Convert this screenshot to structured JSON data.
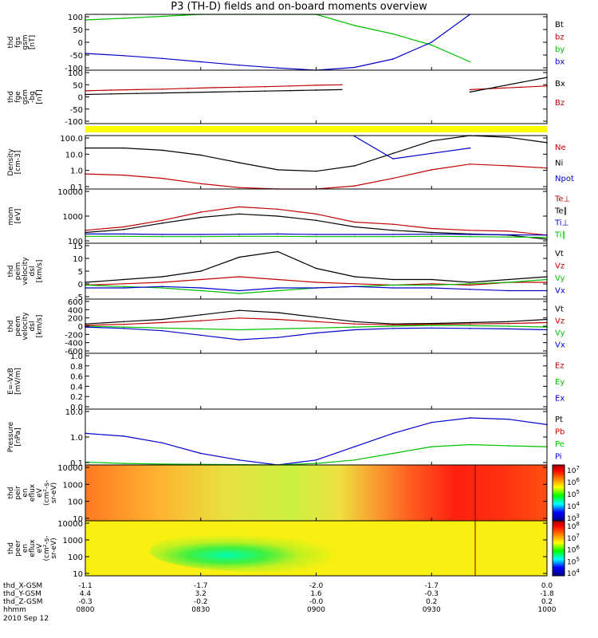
{
  "title": "P3 (TH-D) fields and on-board moments overview",
  "date_label": "2010 Sep 12",
  "colorbar_1": {
    "ticks": [
      "10^7",
      "10^6",
      "10^5",
      "10^4",
      "10^3"
    ]
  },
  "colorbar_2": {
    "ticks": [
      "10^8",
      "10^7",
      "10^6",
      "10^5",
      "10^4"
    ]
  },
  "chart_data": [
    {
      "type": "line",
      "ylabel": [
        "thd",
        "fgs",
        "gsm",
        "[nT]"
      ],
      "yticks": [
        "100",
        "50",
        "0",
        "-50",
        "-100"
      ],
      "ylim": [
        -100,
        100
      ],
      "legend": [
        {
          "label": "Bt",
          "color": "#000000"
        },
        {
          "label": "bz",
          "color": "#c00000"
        },
        {
          "label": "by",
          "color": "#00c000"
        },
        {
          "label": "bx",
          "color": "#0000cc"
        }
      ],
      "x": [
        0,
        10,
        20,
        30,
        40,
        50,
        60,
        70,
        80,
        90,
        100,
        110,
        120
      ],
      "series": [
        {
          "name": "by",
          "color": "#00c000",
          "values": [
            80,
            86,
            93,
            100,
            100,
            100,
            100,
            60,
            30,
            -10,
            -70,
            null,
            null
          ]
        },
        {
          "name": "bx",
          "color": "#0000cc",
          "values": [
            -40,
            -48,
            -58,
            -70,
            -82,
            -92,
            -100,
            -90,
            -60,
            0,
            100,
            null,
            null
          ]
        }
      ]
    },
    {
      "type": "line",
      "ylabel": [
        "thd",
        "fge",
        "gsm",
        "-bg",
        "[nT]"
      ],
      "yticks": [
        "100",
        "50",
        "0",
        "-50",
        "-100"
      ],
      "ylim": [
        -120,
        100
      ],
      "legend": [
        {
          "label": "Bx",
          "color": "#000000"
        },
        {
          "label": "Bz",
          "color": "#c00000"
        }
      ],
      "x": [
        0,
        10,
        20,
        30,
        40,
        50,
        60,
        70,
        80,
        90,
        100,
        110,
        120,
        130,
        140,
        150,
        160,
        170,
        180
      ],
      "series": [
        {
          "name": "Bz",
          "color": "#c00000",
          "values": [
            15,
            18,
            20,
            22,
            25,
            28,
            30,
            32,
            35,
            38,
            40,
            null,
            null,
            null,
            null,
            20,
            25,
            30,
            35
          ]
        },
        {
          "name": "Bx",
          "color": "#000000",
          "values": [
            0,
            2,
            4,
            6,
            8,
            10,
            12,
            14,
            16,
            18,
            20,
            null,
            null,
            null,
            null,
            10,
            30,
            50,
            70
          ]
        }
      ]
    },
    {
      "type": "line",
      "ylabel": [
        "Density",
        "[cm-3]"
      ],
      "yticks": [
        "100.0",
        "10.0",
        "1.0",
        "0.1"
      ],
      "scale": "log",
      "ylim": [
        0.1,
        100
      ],
      "legend": [
        {
          "label": "Ne",
          "color": "#c00000"
        },
        {
          "label": "Ni",
          "color": "#000000"
        },
        {
          "label": "Npot",
          "color": "#0000cc"
        }
      ],
      "x": [
        0,
        10,
        20,
        30,
        40,
        50,
        60,
        70,
        80,
        90,
        100,
        110,
        120
      ],
      "series": [
        {
          "name": "Ni",
          "color": "#000000",
          "values": [
            20,
            20,
            15,
            8,
            3,
            1.2,
            1,
            2,
            10,
            50,
            100,
            80,
            40
          ]
        },
        {
          "name": "Ne",
          "color": "#c00000",
          "values": [
            0.7,
            0.6,
            0.4,
            0.2,
            0.12,
            0.1,
            0.1,
            0.15,
            0.4,
            1.2,
            2.5,
            2.0,
            1.5
          ]
        },
        {
          "name": "Npot",
          "color": "#0000cc",
          "values": [
            null,
            null,
            null,
            null,
            null,
            null,
            null,
            90,
            5,
            10,
            20,
            null,
            null
          ]
        }
      ]
    },
    {
      "type": "line",
      "ylabel": [
        "mom",
        "[eV]"
      ],
      "yticks": [
        "10000",
        "1000",
        "100"
      ],
      "scale": "log",
      "ylim": [
        100,
        10000
      ],
      "legend": [
        {
          "label": "Te⊥",
          "color": "#c00000"
        },
        {
          "label": "Te∥",
          "color": "#000000"
        },
        {
          "label": "Ti⊥",
          "color": "#0000cc"
        },
        {
          "label": "Ti∥",
          "color": "#00c000"
        }
      ],
      "x": [
        0,
        10,
        20,
        30,
        40,
        50,
        60,
        70,
        80,
        90,
        100,
        110,
        120
      ],
      "series": [
        {
          "name": "Te⊥",
          "color": "#c00000",
          "values": [
            300,
            400,
            700,
            1400,
            2200,
            1800,
            1200,
            600,
            500,
            350,
            300,
            280,
            200
          ]
        },
        {
          "name": "Te∥",
          "color": "#000000",
          "values": [
            250,
            320,
            550,
            900,
            1200,
            1000,
            700,
            400,
            300,
            250,
            220,
            200,
            140
          ]
        },
        {
          "name": "Ti⊥",
          "color": "#0000cc",
          "values": [
            220,
            220,
            210,
            210,
            215,
            220,
            210,
            210,
            210,
            215,
            210,
            205,
            200
          ]
        },
        {
          "name": "Ti∥",
          "color": "#00c000",
          "values": [
            180,
            180,
            175,
            175,
            180,
            180,
            175,
            175,
            175,
            180,
            175,
            170,
            165
          ]
        }
      ]
    },
    {
      "type": "line",
      "ylabel": [
        "thd",
        "peim",
        "velocity",
        "dsl",
        "[km/s]"
      ],
      "yticks": [
        "15",
        "10",
        "5",
        "0",
        "-5"
      ],
      "ylim": [
        -5,
        15
      ],
      "legend": [
        {
          "label": "Vt",
          "color": "#000000"
        },
        {
          "label": "Vz",
          "color": "#c00000"
        },
        {
          "label": "Vy",
          "color": "#00c000"
        },
        {
          "label": "Vx",
          "color": "#0000cc"
        }
      ],
      "x": [
        0,
        10,
        20,
        30,
        40,
        50,
        60,
        70,
        80,
        90,
        100,
        110,
        120
      ],
      "series": [
        {
          "name": "Vt",
          "color": "#000000",
          "values": [
            1,
            2,
            3,
            5,
            10,
            12,
            6,
            3,
            2,
            2,
            1,
            2,
            3
          ]
        },
        {
          "name": "Vz",
          "color": "#c00000",
          "values": [
            0,
            0.5,
            1,
            2,
            3,
            2,
            1,
            0.5,
            0,
            0.5,
            0,
            1,
            1
          ]
        },
        {
          "name": "Vy",
          "color": "#00c000",
          "values": [
            0,
            -0.5,
            -1,
            -2,
            -3,
            -2,
            -1,
            -0.5,
            0,
            0,
            0.5,
            1,
            2
          ]
        },
        {
          "name": "Vx",
          "color": "#0000cc",
          "values": [
            -1,
            -1,
            -0.5,
            -1,
            -2,
            -1,
            -1,
            -0.5,
            -1,
            -1,
            -1.5,
            -2,
            -2
          ]
        }
      ]
    },
    {
      "type": "line",
      "ylabel": [
        "thd",
        "peem",
        "velocity",
        "dsl",
        "[km/s]"
      ],
      "yticks": [
        "600",
        "400",
        "200",
        "0",
        "-200",
        "-400",
        "-600"
      ],
      "ylim": [
        -600,
        600
      ],
      "legend": [
        {
          "label": "Vt",
          "color": "#000000"
        },
        {
          "label": "Vz",
          "color": "#c00000"
        },
        {
          "label": "Vy",
          "color": "#00c000"
        },
        {
          "label": "Vx",
          "color": "#0000cc"
        }
      ],
      "x": [
        0,
        10,
        20,
        30,
        40,
        50,
        60,
        70,
        80,
        90,
        100,
        110,
        120
      ],
      "series": [
        {
          "name": "Vt",
          "color": "#000000",
          "values": [
            50,
            100,
            150,
            250,
            350,
            300,
            200,
            100,
            50,
            60,
            80,
            100,
            150
          ]
        },
        {
          "name": "Vz",
          "color": "#c00000",
          "values": [
            20,
            40,
            80,
            120,
            180,
            150,
            100,
            50,
            30,
            40,
            50,
            60,
            80
          ]
        },
        {
          "name": "Vy",
          "color": "#00c000",
          "values": [
            0,
            -20,
            -40,
            -60,
            -80,
            -60,
            -40,
            -20,
            0,
            20,
            10,
            0,
            -20
          ]
        },
        {
          "name": "Vx",
          "color": "#0000cc",
          "values": [
            -20,
            -50,
            -100,
            -200,
            -300,
            -250,
            -150,
            -80,
            -50,
            -40,
            -50,
            -60,
            -80
          ]
        }
      ]
    },
    {
      "type": "line",
      "ylabel": [
        "E=-VxB",
        "[mV/m]"
      ],
      "yticks": [
        "1.0",
        "0.8",
        "0.6",
        "0.4",
        "0.2",
        "0.0"
      ],
      "ylim": [
        0,
        1
      ],
      "legend": [
        {
          "label": "Ez",
          "color": "#c00000"
        },
        {
          "label": "Ey",
          "color": "#00c000"
        },
        {
          "label": "Ex",
          "color": "#0000cc"
        }
      ],
      "series": []
    },
    {
      "type": "line",
      "ylabel": [
        "Pressure",
        "[nPa]"
      ],
      "yticks": [
        "10.0",
        "1.0",
        "0.1"
      ],
      "scale": "log",
      "ylim": [
        0.03,
        10
      ],
      "legend": [
        {
          "label": "Pt",
          "color": "#000000"
        },
        {
          "label": "Pb",
          "color": "#c00000"
        },
        {
          "label": "Pe",
          "color": "#00c000"
        },
        {
          "label": "Pi",
          "color": "#0000cc"
        }
      ],
      "x": [
        0,
        10,
        20,
        30,
        40,
        50,
        60,
        70,
        80,
        90,
        100,
        110,
        120
      ],
      "series": [
        {
          "name": "Pi",
          "color": "#0000cc",
          "values": [
            0.8,
            0.6,
            0.3,
            0.1,
            0.05,
            0.03,
            0.05,
            0.2,
            0.8,
            2.5,
            4,
            3.5,
            2
          ]
        },
        {
          "name": "Pe",
          "color": "#00c000",
          "values": [
            0.04,
            0.035,
            0.033,
            0.032,
            0.031,
            0.03,
            0.035,
            0.05,
            0.1,
            0.2,
            0.25,
            0.22,
            0.2
          ]
        }
      ]
    },
    {
      "type": "heatmap",
      "ylabel": [
        "thd",
        "peir",
        "en",
        "eflux",
        "eV",
        "(cm²-s-",
        "sr-eV)"
      ],
      "yticks": [
        "10000",
        "1000",
        "100",
        "10"
      ],
      "scale": "log"
    },
    {
      "type": "heatmap",
      "ylabel": [
        "thd",
        "peer",
        "en",
        "eflux",
        "eV",
        "(cm²-s-",
        "sr-eV)"
      ],
      "yticks": [
        "10000",
        "1000",
        "100",
        "10"
      ],
      "scale": "log"
    }
  ],
  "x_axis": {
    "rows": [
      {
        "label": "thd_X-GSM",
        "values": [
          "-1.1",
          "-1.7",
          "-2.0",
          "-1.7",
          "0.0"
        ]
      },
      {
        "label": "thd_Y-GSM",
        "values": [
          "4.4",
          "3.2",
          "1.6",
          "-0.3",
          "-1.8"
        ]
      },
      {
        "label": "thd_Z-GSM",
        "values": [
          "-0.3",
          "-0.2",
          "-0.0",
          "0.2",
          "0.2"
        ]
      },
      {
        "label": "hhmm",
        "values": [
          "0800",
          "0830",
          "0900",
          "0930",
          "1000"
        ]
      }
    ]
  }
}
